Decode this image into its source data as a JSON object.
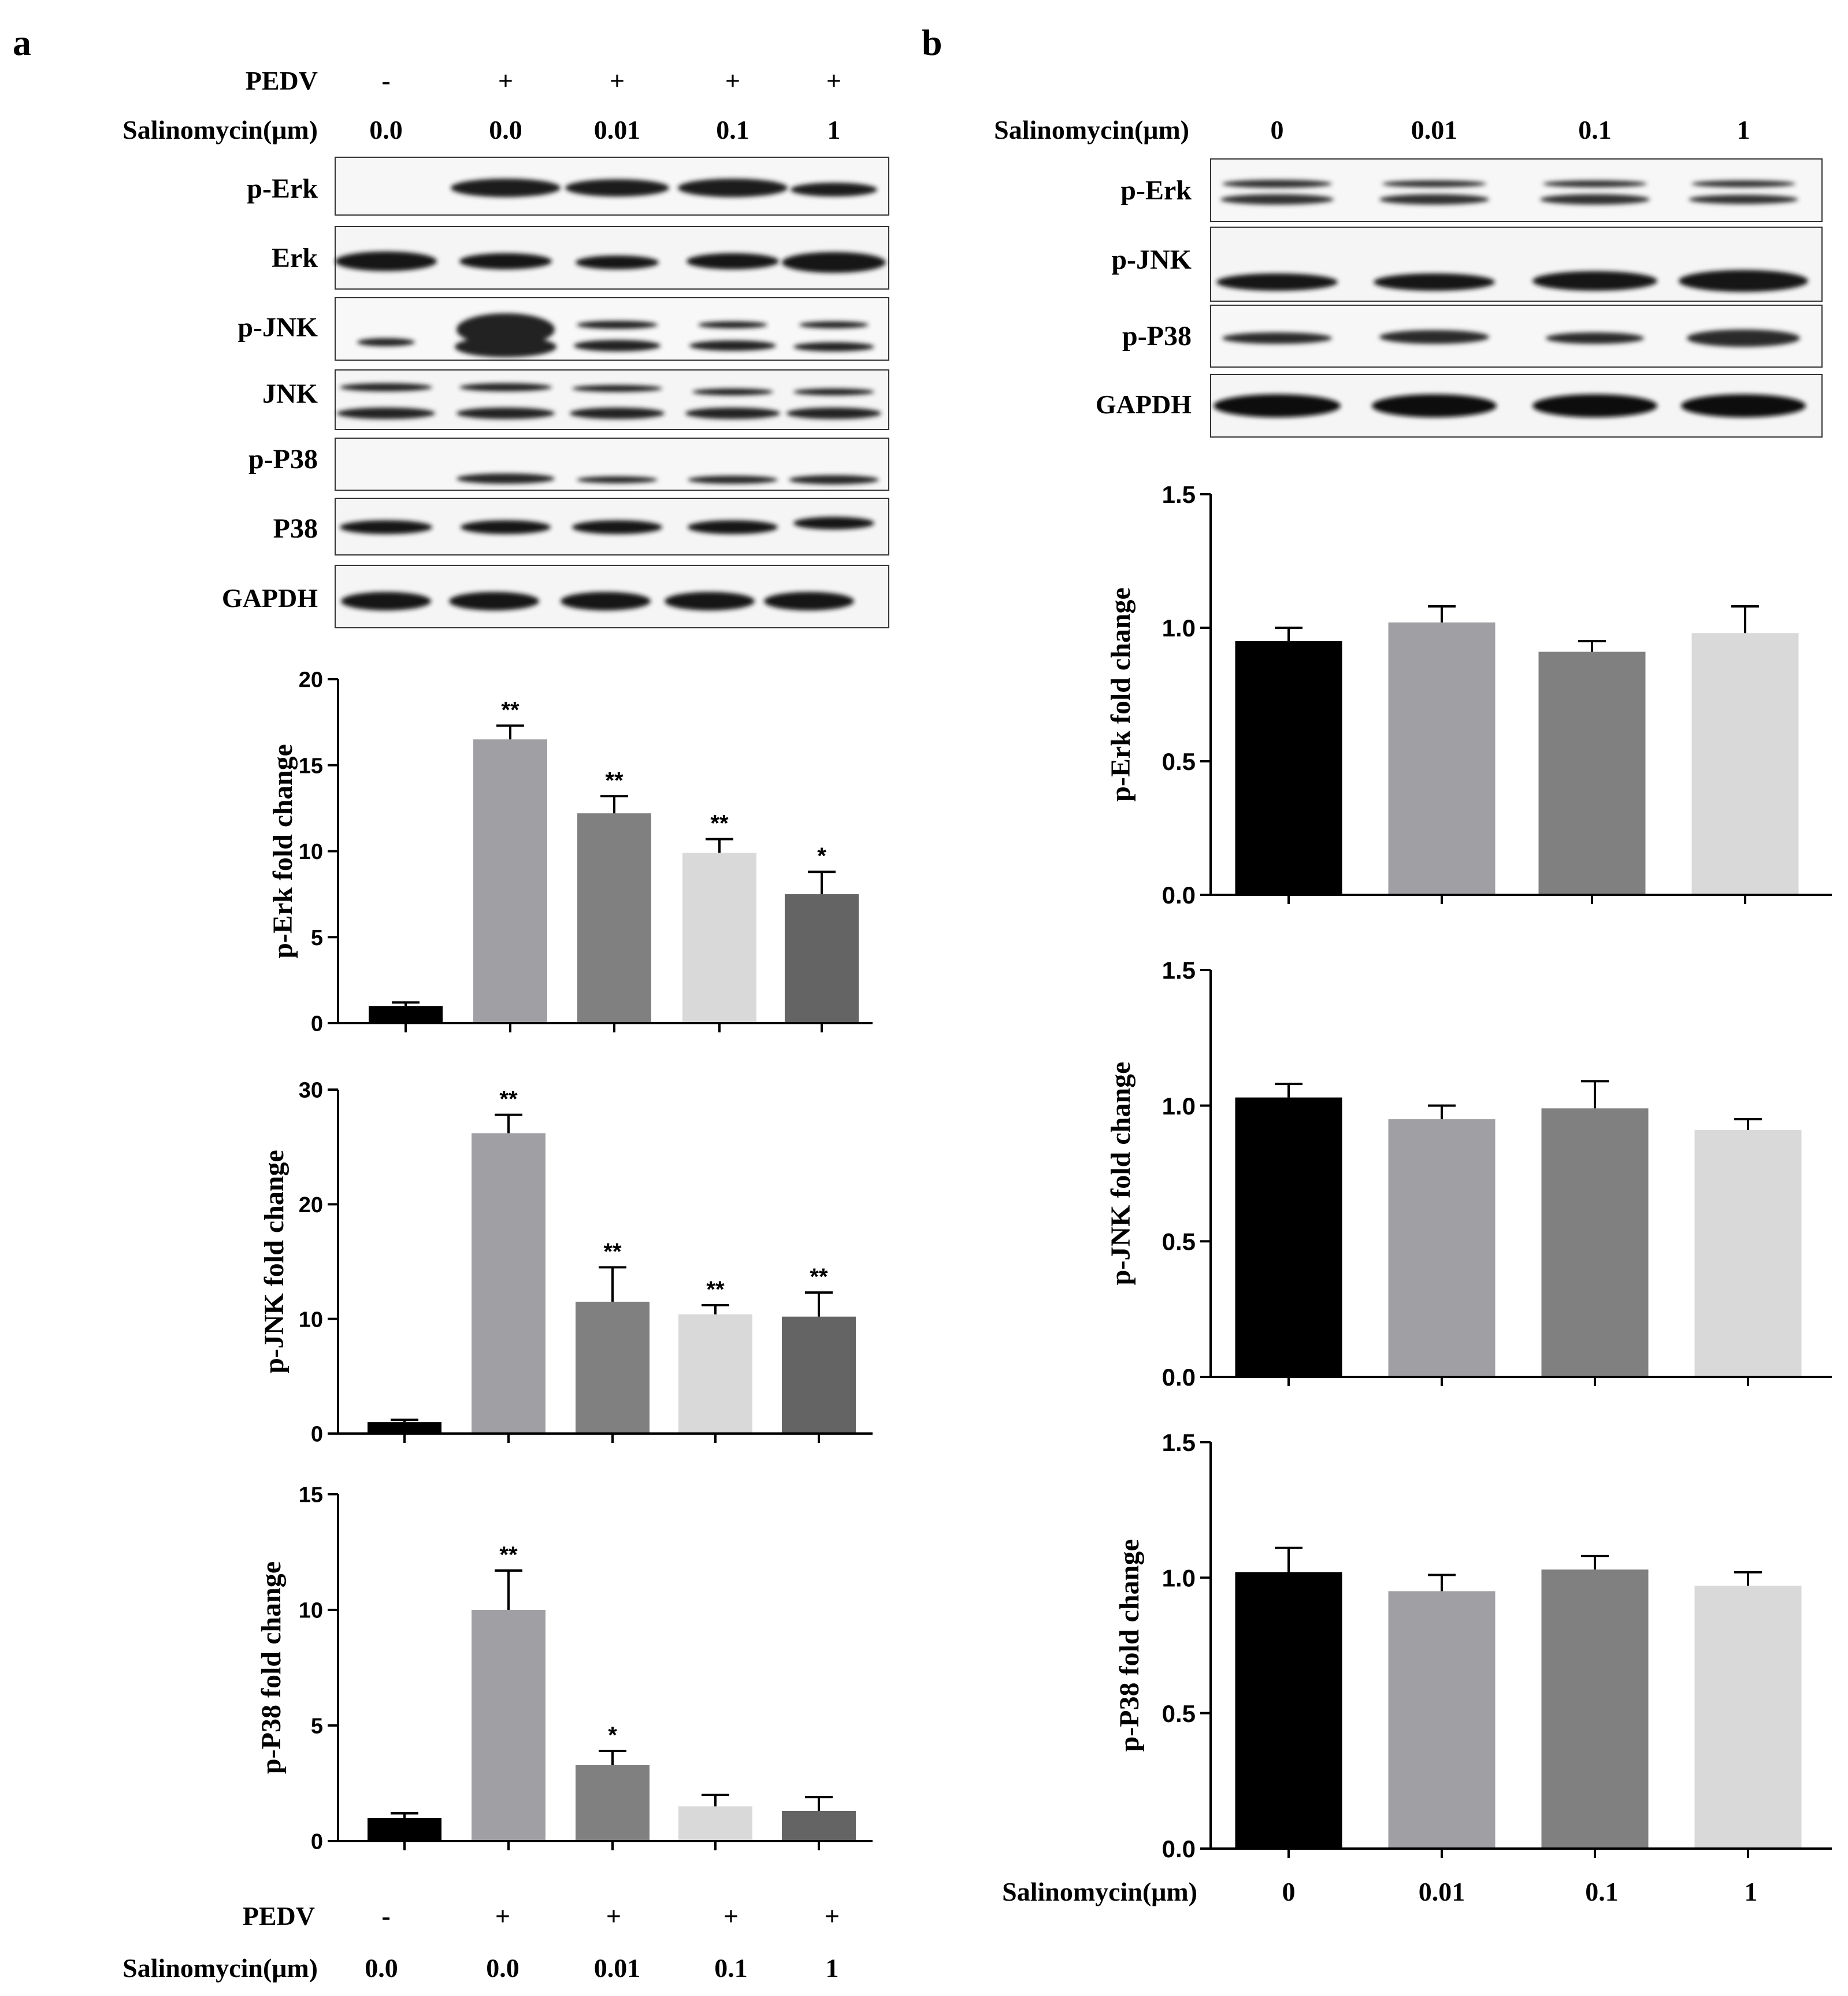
{
  "panels": {
    "a": {
      "letter": "a",
      "header": {
        "pedv_label": "PEDV",
        "pedv_signs": [
          "-",
          "+",
          "+",
          "+",
          "+"
        ],
        "drug_label": "Salinomycin(μm)",
        "doses": [
          "0.0",
          "0.0",
          "0.01",
          "0.1",
          "1"
        ]
      },
      "blot_labels": [
        "p-Erk",
        "Erk",
        "p-JNK",
        "JNK",
        "p-P38",
        "P38",
        "GAPDH"
      ],
      "footer": {
        "pedv_label": "PEDV",
        "pedv_signs": [
          "-",
          "+",
          "+",
          "+",
          "+"
        ],
        "drug_label": "Salinomycin(μm)",
        "doses": [
          "0.0",
          "0.0",
          "0.01",
          "0.1",
          "1"
        ]
      }
    },
    "b": {
      "letter": "b",
      "header": {
        "drug_label": "Salinomycin(μm)",
        "doses": [
          "0",
          "0.01",
          "0.1",
          "1"
        ]
      },
      "blot_labels": [
        "p-Erk",
        "p-JNK",
        "p-P38",
        "GAPDH"
      ],
      "footer": {
        "drug_label": "Salinomycin(μm)",
        "doses": [
          "0",
          "0.01",
          "0.1",
          "1"
        ]
      }
    }
  },
  "colors": {
    "a_bars": [
      "#000000",
      "#a0a0a4",
      "#808080",
      "#d9d9d9",
      "#646464"
    ],
    "b_bars": [
      "#000000",
      "#a0a0a4",
      "#808080",
      "#d9d9d9"
    ]
  },
  "chart_data": [
    {
      "panel": "a",
      "type": "bar",
      "ylabel": "p-Erk fold change",
      "categories": [
        "0.0",
        "0.0",
        "0.01",
        "0.1",
        "1"
      ],
      "values": [
        1.0,
        16.5,
        12.2,
        9.9,
        7.5
      ],
      "errors": [
        0.2,
        0.8,
        1.0,
        0.8,
        1.3
      ],
      "annotations": [
        "",
        "**",
        "**",
        "**",
        "*"
      ],
      "ylim": [
        0,
        20
      ],
      "yticks": [
        "0",
        "5",
        "10",
        "15",
        "20"
      ],
      "ytick_values": [
        0,
        5,
        10,
        15,
        20
      ]
    },
    {
      "panel": "a",
      "type": "bar",
      "ylabel": "p-JNK fold change",
      "categories": [
        "0.0",
        "0.0",
        "0.01",
        "0.1",
        "1"
      ],
      "values": [
        1.0,
        26.2,
        11.5,
        10.4,
        10.2
      ],
      "errors": [
        0.2,
        1.6,
        3.0,
        0.8,
        2.1
      ],
      "annotations": [
        "",
        "**",
        "**",
        "**",
        "**"
      ],
      "ylim": [
        0,
        30
      ],
      "yticks": [
        "0",
        "10",
        "20",
        "30"
      ],
      "ytick_values": [
        0,
        10,
        20,
        30
      ]
    },
    {
      "panel": "a",
      "type": "bar",
      "ylabel": "p-P38 fold change",
      "categories": [
        "0.0",
        "0.0",
        "0.01",
        "0.1",
        "1"
      ],
      "values": [
        1.0,
        10.0,
        3.3,
        1.5,
        1.3
      ],
      "errors": [
        0.2,
        1.7,
        0.6,
        0.5,
        0.6
      ],
      "annotations": [
        "",
        "**",
        "*",
        "",
        ""
      ],
      "ylim": [
        0,
        15
      ],
      "yticks": [
        "0",
        "5",
        "10",
        "15"
      ],
      "ytick_values": [
        0,
        5,
        10,
        15
      ]
    },
    {
      "panel": "b",
      "type": "bar",
      "ylabel": "p-Erk fold change",
      "categories": [
        "0",
        "0.01",
        "0.1",
        "1"
      ],
      "values": [
        0.95,
        1.02,
        0.91,
        0.98
      ],
      "errors": [
        0.05,
        0.06,
        0.04,
        0.1
      ],
      "annotations": [
        "",
        "",
        "",
        ""
      ],
      "ylim": [
        0,
        1.5
      ],
      "yticks": [
        "0.0",
        "0.5",
        "1.0",
        "1.5"
      ],
      "ytick_values": [
        0,
        0.5,
        1.0,
        1.5
      ]
    },
    {
      "panel": "b",
      "type": "bar",
      "ylabel": "p-JNK fold change",
      "categories": [
        "0",
        "0.01",
        "0.1",
        "1"
      ],
      "values": [
        1.03,
        0.95,
        0.99,
        0.91
      ],
      "errors": [
        0.05,
        0.05,
        0.1,
        0.04
      ],
      "annotations": [
        "",
        "",
        "",
        ""
      ],
      "ylim": [
        0,
        1.5
      ],
      "yticks": [
        "0.0",
        "0.5",
        "1.0",
        "1.5"
      ],
      "ytick_values": [
        0,
        0.5,
        1.0,
        1.5
      ]
    },
    {
      "panel": "b",
      "type": "bar",
      "ylabel": "p-P38 fold change",
      "categories": [
        "0",
        "0.01",
        "0.1",
        "1"
      ],
      "values": [
        1.02,
        0.95,
        1.03,
        0.97
      ],
      "errors": [
        0.09,
        0.06,
        0.05,
        0.05
      ],
      "annotations": [
        "",
        "",
        "",
        ""
      ],
      "ylim": [
        0,
        1.5
      ],
      "yticks": [
        "0.0",
        "0.5",
        "1.0",
        "1.5"
      ],
      "ytick_values": [
        0,
        0.5,
        1.0,
        1.5
      ]
    }
  ]
}
